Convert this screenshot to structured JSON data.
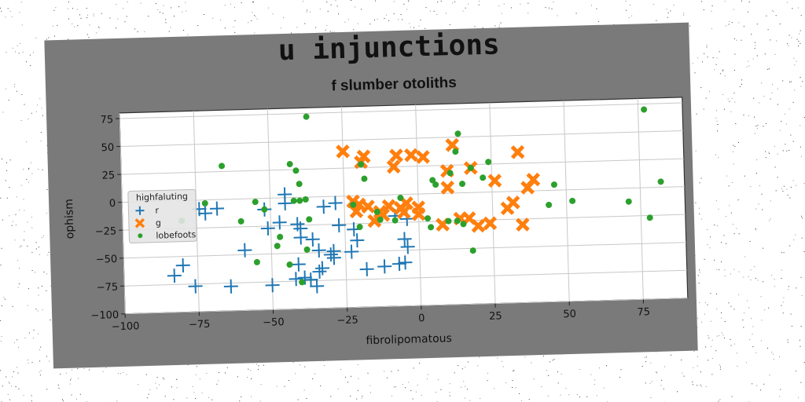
{
  "chart_data": {
    "type": "scatter",
    "title": "u injunctions",
    "subtitle": "f slumber otoliths",
    "xlabel": "fibrolipomatous",
    "ylabel": "ophism",
    "xlim": [
      -100,
      90
    ],
    "ylim": [
      -100,
      80
    ],
    "xticks": [
      -100,
      -75,
      -50,
      -25,
      0,
      25,
      50,
      75
    ],
    "yticks": [
      -100,
      -75,
      -50,
      -25,
      0,
      25,
      50,
      75
    ],
    "grid": true,
    "legend": {
      "title": "highfaluting",
      "placement": "center-left"
    },
    "series": [
      {
        "name": "r",
        "marker": "plus",
        "color": "#1f77b4",
        "points": [
          [
            -83,
            -67
          ],
          [
            -80,
            -58
          ],
          [
            -76,
            -77
          ],
          [
            -74,
            -8
          ],
          [
            -72,
            -12
          ],
          [
            -68,
            -8
          ],
          [
            -64,
            -78
          ],
          [
            -59,
            -46
          ],
          [
            -52,
            -10
          ],
          [
            -51,
            -27
          ],
          [
            -50,
            -78
          ],
          [
            -47,
            -22
          ],
          [
            -45,
            -5
          ],
          [
            -45,
            3
          ],
          [
            -42,
            -73
          ],
          [
            -41,
            -24
          ],
          [
            -41,
            -60
          ],
          [
            -40,
            -28
          ],
          [
            -40,
            -36
          ],
          [
            -39,
            -72
          ],
          [
            -37,
            -74
          ],
          [
            -36,
            -38
          ],
          [
            -35,
            -80
          ],
          [
            -34,
            -48
          ],
          [
            -34,
            -67
          ],
          [
            -33,
            -64
          ],
          [
            -32,
            -9
          ],
          [
            -30,
            -52
          ],
          [
            -29,
            -49
          ],
          [
            -29,
            -55
          ],
          [
            -28,
            -6
          ],
          [
            -27,
            -26
          ],
          [
            -23,
            -50
          ],
          [
            -22,
            -30
          ],
          [
            -21,
            -40
          ],
          [
            -18,
            -66
          ],
          [
            -12,
            -64
          ],
          [
            -8,
            -19
          ],
          [
            -7,
            -62
          ],
          [
            -5,
            -61
          ],
          [
            -5,
            -40
          ],
          [
            -4,
            -22
          ],
          [
            -4,
            -47
          ]
        ]
      },
      {
        "name": "g",
        "marker": "x",
        "color": "#ff7f0e",
        "points": [
          [
            -25,
            40
          ],
          [
            -22,
            -5
          ],
          [
            -21,
            -14
          ],
          [
            -20,
            -8
          ],
          [
            -19,
            30
          ],
          [
            -18,
            35
          ],
          [
            -17,
            -10
          ],
          [
            -15,
            -23
          ],
          [
            -13,
            -15
          ],
          [
            -12,
            -18
          ],
          [
            -10,
            -10
          ],
          [
            -8,
            25
          ],
          [
            -7,
            35
          ],
          [
            -6,
            -12
          ],
          [
            -5,
            -16
          ],
          [
            -4,
            -8
          ],
          [
            -2,
            35
          ],
          [
            0,
            -12
          ],
          [
            0,
            -18
          ],
          [
            2,
            33
          ],
          [
            8,
            -28
          ],
          [
            10,
            5
          ],
          [
            10,
            20
          ],
          [
            12,
            43
          ],
          [
            14,
            -23
          ],
          [
            17,
            -23
          ],
          [
            18,
            22
          ],
          [
            20,
            -30
          ],
          [
            24,
            -28
          ],
          [
            26,
            10
          ],
          [
            30,
            -15
          ],
          [
            32,
            -10
          ],
          [
            34,
            35
          ],
          [
            35,
            -30
          ],
          [
            37,
            3
          ],
          [
            39,
            10
          ]
        ]
      },
      {
        "name": "lobefoots",
        "marker": "circle",
        "color": "#2ca02c",
        "points": [
          [
            -80,
            -18
          ],
          [
            -72,
            -3
          ],
          [
            -66,
            30
          ],
          [
            -60,
            -20
          ],
          [
            -55,
            -3
          ],
          [
            -55,
            -57
          ],
          [
            -52,
            -10
          ],
          [
            -48,
            -43
          ],
          [
            -47,
            -35
          ],
          [
            -44,
            -60
          ],
          [
            -43,
            30
          ],
          [
            -42,
            -3
          ],
          [
            -41,
            24
          ],
          [
            -40,
            -3
          ],
          [
            -40,
            -76
          ],
          [
            -40,
            12
          ],
          [
            -38,
            -2
          ],
          [
            -38,
            -47
          ],
          [
            -37,
            -20
          ],
          [
            -37,
            72
          ],
          [
            -22,
            -8
          ],
          [
            -20,
            -28
          ],
          [
            -19,
            28
          ],
          [
            -18,
            15
          ],
          [
            -14,
            -15
          ],
          [
            -13,
            -22
          ],
          [
            -8,
            -23
          ],
          [
            -6,
            -3
          ],
          [
            3,
            -22
          ],
          [
            4,
            -30
          ],
          [
            5,
            12
          ],
          [
            6,
            8
          ],
          [
            10,
            -25
          ],
          [
            11,
            18
          ],
          [
            13,
            -25
          ],
          [
            13,
            37
          ],
          [
            14,
            53
          ],
          [
            15,
            -28
          ],
          [
            15,
            8
          ],
          [
            18,
            22
          ],
          [
            18,
            -52
          ],
          [
            22,
            13
          ],
          [
            24,
            27
          ],
          [
            44,
            -13
          ],
          [
            46,
            5
          ],
          [
            52,
            -10
          ],
          [
            71,
            -12
          ],
          [
            77,
            70
          ],
          [
            78,
            -27
          ],
          [
            82,
            5
          ]
        ]
      }
    ]
  }
}
